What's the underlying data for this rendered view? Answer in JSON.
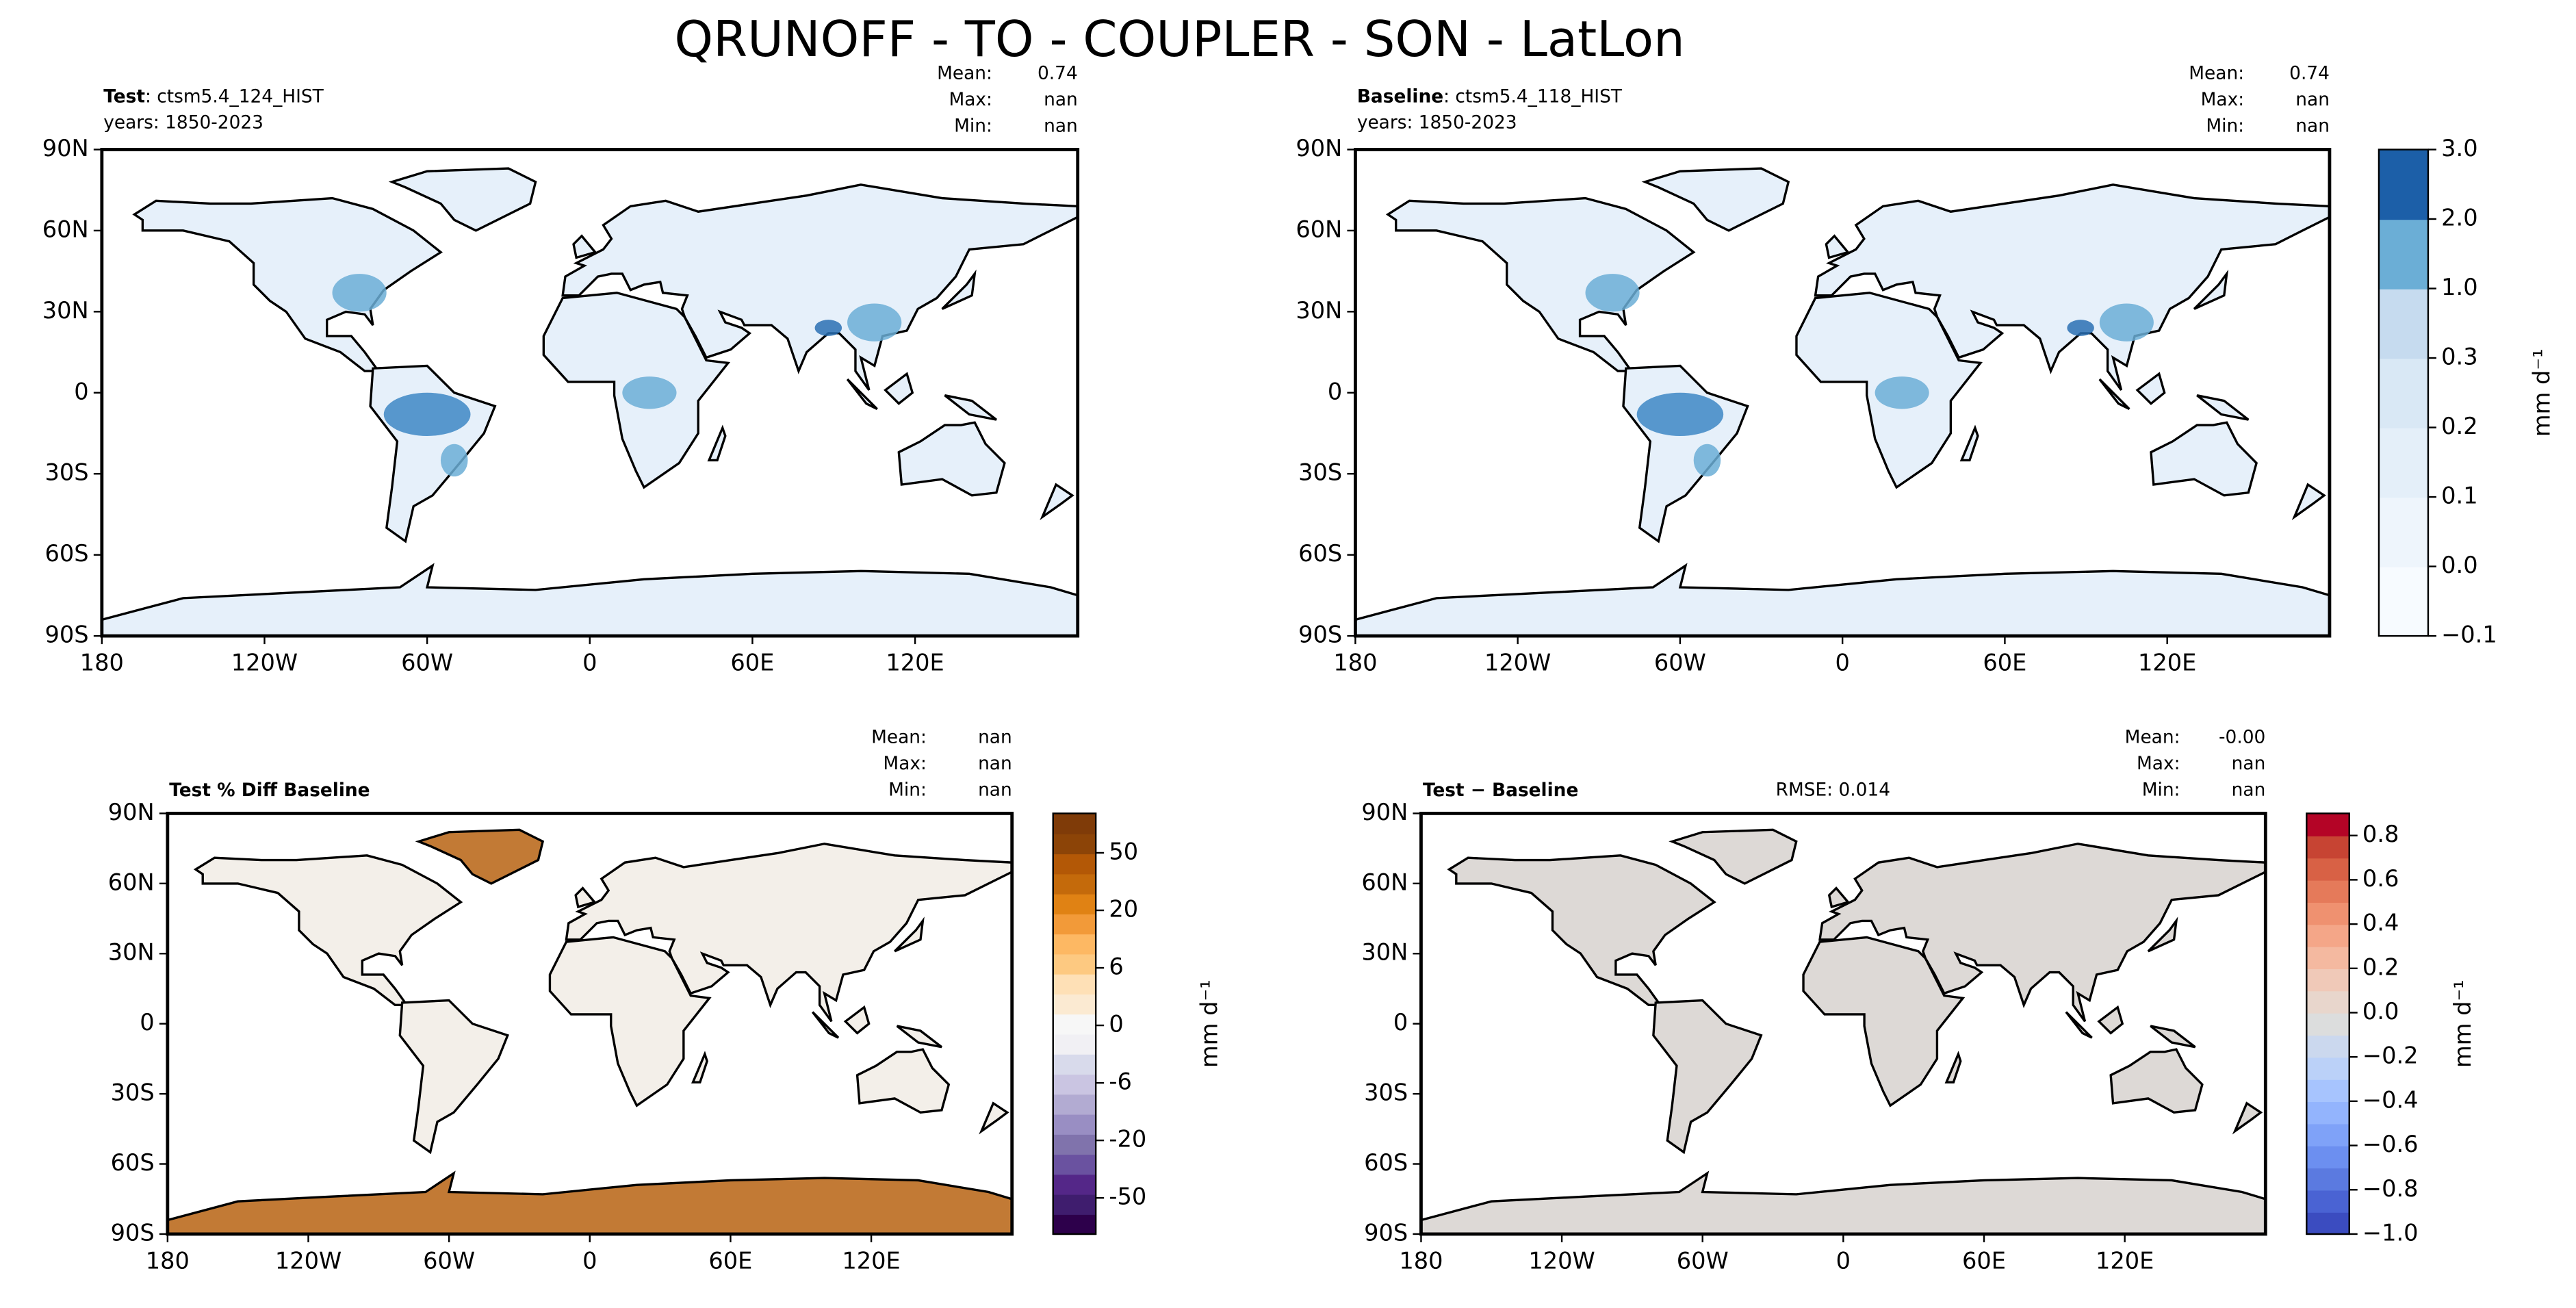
{
  "title": "QRUNOFF - TO - COUPLER - SON - LatLon",
  "panels": [
    {
      "title_bold": "Test",
      "title_rest": ": ctsm5.4_124_HIST",
      "years": "years: 1850-2023",
      "stats": [
        [
          "Mean:",
          "0.74"
        ],
        [
          "Max:",
          "nan"
        ],
        [
          "Min:",
          "nan"
        ]
      ],
      "style": "field"
    },
    {
      "title_bold": "Baseline",
      "title_rest": ": ctsm5.4_118_HIST",
      "years": "years: 1850-2023",
      "stats": [
        [
          "Mean:",
          "0.74"
        ],
        [
          "Max:",
          "nan"
        ],
        [
          "Min:",
          "nan"
        ]
      ],
      "style": "field"
    },
    {
      "title_bold": "Test % Diff Baseline",
      "stats": [
        [
          "Mean:",
          "nan"
        ],
        [
          "Max:",
          "nan"
        ],
        [
          "Min:",
          "nan"
        ]
      ],
      "style": "pct"
    },
    {
      "title_bold": "Test − Baseline",
      "rmse": "RMSE: 0.014",
      "stats": [
        [
          "Mean:",
          "-0.00"
        ],
        [
          "Max:",
          "nan"
        ],
        [
          "Min:",
          "nan"
        ]
      ],
      "style": "diff"
    }
  ],
  "xticks": [
    {
      "value": -180,
      "label": "180"
    },
    {
      "value": -120,
      "label": "120W"
    },
    {
      "value": -60,
      "label": "60W"
    },
    0,
    {
      "value": 60,
      "label": "60E"
    },
    {
      "value": 120,
      "label": "120E"
    }
  ],
  "yticks": [
    {
      "value": 90,
      "label": "90N"
    },
    {
      "value": 60,
      "label": "60N"
    },
    {
      "value": 30,
      "label": "30N"
    },
    0,
    {
      "value": -30,
      "label": "30S"
    },
    {
      "value": -60,
      "label": "60S"
    },
    {
      "value": -90,
      "label": "90S"
    }
  ],
  "colorbars": [
    {
      "unit": "mm d⁻¹",
      "kind": "levels",
      "ticks": [
        {
          "value": -0.1,
          "label": "−0.1"
        },
        {
          "value": 0,
          "label": "0.0"
        },
        {
          "value": 0.1,
          "label": "0.1"
        },
        {
          "value": 0.2,
          "label": "0.2"
        },
        {
          "value": 0.3,
          "label": "0.3"
        },
        {
          "value": 1,
          "label": "1.0"
        },
        {
          "value": 2,
          "label": "2.0"
        },
        {
          "value": 3,
          "label": "3.0"
        }
      ],
      "colors": [
        "#f7fbff",
        "#eef5fc",
        "#e4eff9",
        "#d9e8f5",
        "#c6dbef",
        "#6baed6",
        "#1c5fa8"
      ]
    },
    {
      "unit": "mm d⁻¹",
      "kind": "pct",
      "ticks": [
        -50,
        -20,
        -6,
        0,
        6,
        20,
        50
      ],
      "colors": [
        "#2d004b",
        "#3f1d6e",
        "#542788",
        "#6a52a0",
        "#8073ac",
        "#998ec3",
        "#b2abd2",
        "#cac5e2",
        "#d8daeb",
        "#f1f0f4",
        "#f7f7f7",
        "#fbead2",
        "#fee0b6",
        "#fdc981",
        "#fdb863",
        "#f29a39",
        "#e08214",
        "#c46a0b",
        "#b35806",
        "#8c4407",
        "#7f3b08"
      ]
    },
    {
      "unit": "mm d⁻¹",
      "kind": "linear",
      "ylim": [
        -1.0,
        0.9
      ],
      "ticks": [
        {
          "value": -1,
          "label": "−1.0"
        },
        {
          "value": -0.8,
          "label": "−0.8"
        },
        {
          "value": -0.6,
          "label": "−0.6"
        },
        {
          "value": -0.4,
          "label": "−0.4"
        },
        {
          "value": -0.2,
          "label": "−0.2"
        },
        {
          "value": 0,
          "label": "0.0"
        },
        {
          "value": 0.2,
          "label": "0.2"
        },
        {
          "value": 0.4,
          "label": "0.4"
        },
        {
          "value": 0.6,
          "label": "0.6"
        },
        {
          "value": 0.8,
          "label": "0.8"
        }
      ],
      "colors": [
        "#3b4cc0",
        "#4a63d3",
        "#5b7ae0",
        "#6c8ff0",
        "#7fa2f8",
        "#93b4fd",
        "#a7c4fe",
        "#bbd1f8",
        "#cbd8ee",
        "#dcdddd",
        "#e8d6cc",
        "#f0c9b8",
        "#f4b9a0",
        "#f4a688",
        "#ef9170",
        "#e57a5a",
        "#d86145",
        "#c74433",
        "#b40426"
      ]
    }
  ]
}
